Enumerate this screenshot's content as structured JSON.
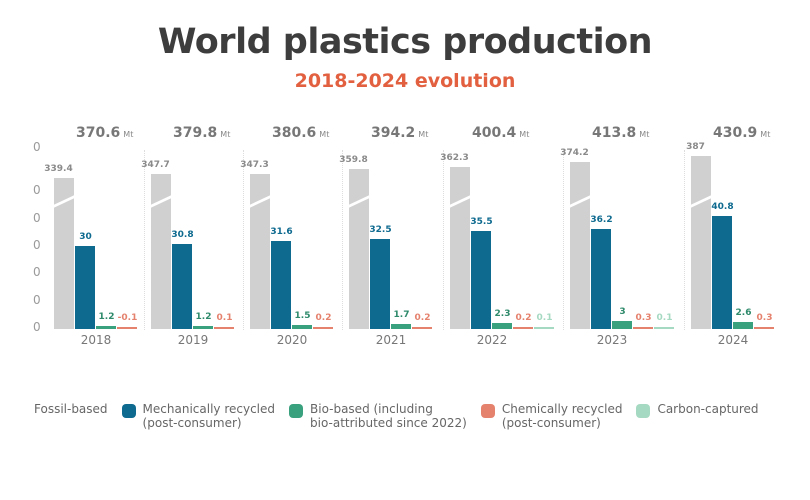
{
  "chart_data": {
    "type": "bar",
    "title": "World plastics production",
    "subtitle": "2018-2024 evolution",
    "unit": "Mt",
    "y_tick_labels": [
      "0",
      "0",
      "0",
      "0",
      "0",
      "0",
      "0"
    ],
    "axis_break": true,
    "categories": [
      "2018",
      "2019",
      "2020",
      "2021",
      "2022",
      "2023",
      "2024"
    ],
    "totals": [
      "370.6",
      "379.8",
      "380.6",
      "394.2",
      "400.4",
      "413.8",
      "430.9"
    ],
    "series": [
      {
        "name": "Fossil-based",
        "color": "#d0d0d0",
        "label_color": "#8a8a8a",
        "values": [
          339.4,
          347.7,
          347.3,
          359.8,
          362.3,
          374.2,
          387
        ]
      },
      {
        "name": "Mechanically recycled (post-consumer)",
        "color": "#0e6a8f",
        "label_color": "#0e6a8f",
        "values": [
          30,
          30.8,
          31.6,
          32.5,
          35.5,
          36.2,
          40.8
        ]
      },
      {
        "name": "Bio-based (including bio-attributed since 2022)",
        "color": "#3aa17e",
        "label_color": "#2e8a6b",
        "values": [
          1.2,
          1.2,
          1.5,
          1.7,
          2.3,
          3,
          2.6
        ]
      },
      {
        "name": "Chemically recycled (post-consumer)",
        "color": "#e5826e",
        "label_color": "#e5826e",
        "values": [
          -0.1,
          0.1,
          0.2,
          0.2,
          0.2,
          0.3,
          0.3
        ]
      },
      {
        "name": "Carbon-captured",
        "color": "#a6d9c2",
        "label_color": "#a6d9c2",
        "values": [
          null,
          null,
          null,
          null,
          0.1,
          0.1,
          null
        ]
      }
    ],
    "legend": [
      "Fossil-based",
      "Mechanically recycled\n(post-consumer)",
      "Bio-based (including\nbio-attributed since 2022)",
      "Chemically recycled\n(post-consumer)",
      "Carbon-captured"
    ],
    "legend_position": "bottom",
    "grid": false
  }
}
